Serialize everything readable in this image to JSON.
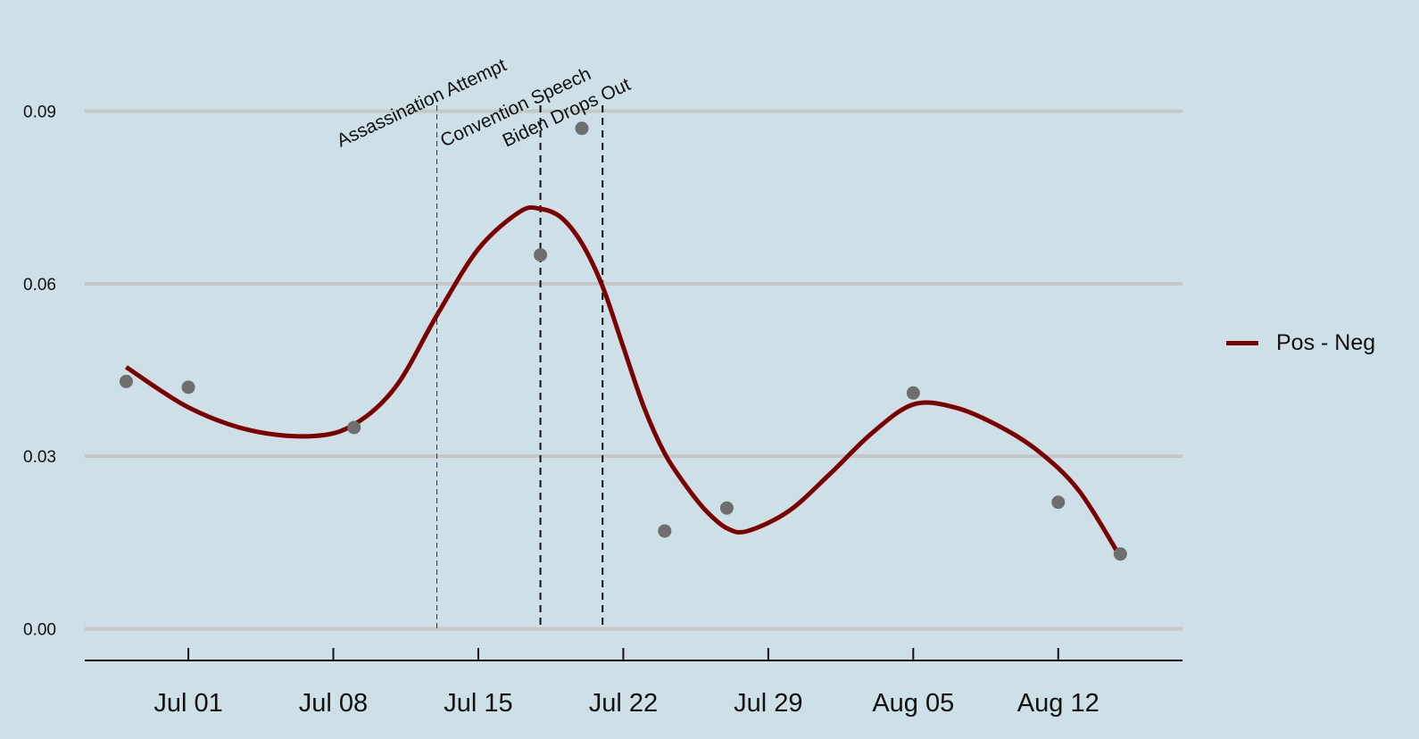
{
  "chart_data": {
    "type": "line",
    "title": "",
    "xlabel": "",
    "ylabel": "",
    "x_ticks": [
      "Jul 01",
      "Jul 08",
      "Jul 15",
      "Jul 22",
      "Jul 29",
      "Aug 05",
      "Aug 12"
    ],
    "x_tick_dates": [
      "2024-07-01",
      "2024-07-08",
      "2024-07-15",
      "2024-07-22",
      "2024-07-29",
      "2024-08-05",
      "2024-08-12"
    ],
    "xlim": [
      "2024-06-26",
      "2024-08-18"
    ],
    "y_ticks": [
      "0.00",
      "0.03",
      "0.06",
      "0.09"
    ],
    "y_tick_values": [
      0.0,
      0.03,
      0.06,
      0.09
    ],
    "ylim": [
      -0.0055,
      0.1
    ],
    "grid": "horizontal",
    "legend_position": "right",
    "points": [
      {
        "x": "2024-06-28",
        "y": 0.043
      },
      {
        "x": "2024-07-01",
        "y": 0.042
      },
      {
        "x": "2024-07-09",
        "y": 0.035
      },
      {
        "x": "2024-07-18",
        "y": 0.065
      },
      {
        "x": "2024-07-20",
        "y": 0.087
      },
      {
        "x": "2024-07-24",
        "y": 0.017
      },
      {
        "x": "2024-07-27",
        "y": 0.021
      },
      {
        "x": "2024-08-05",
        "y": 0.041
      },
      {
        "x": "2024-08-12",
        "y": 0.022
      },
      {
        "x": "2024-08-15",
        "y": 0.013
      }
    ],
    "series": [
      {
        "name": "Pos - Neg",
        "color": "#7b0000",
        "x": [
          "2024-06-28",
          "2024-07-01",
          "2024-07-04",
          "2024-07-07",
          "2024-07-09",
          "2024-07-11",
          "2024-07-13",
          "2024-07-15",
          "2024-07-17",
          "2024-07-18",
          "2024-07-19",
          "2024-07-20",
          "2024-07-21",
          "2024-07-22",
          "2024-07-23",
          "2024-07-24",
          "2024-07-25",
          "2024-07-26",
          "2024-07-27",
          "2024-07-28",
          "2024-07-30",
          "2024-08-01",
          "2024-08-03",
          "2024-08-05",
          "2024-08-07",
          "2024-08-09",
          "2024-08-11",
          "2024-08-13",
          "2024-08-15"
        ],
        "y": [
          0.0455,
          0.0385,
          0.0345,
          0.0335,
          0.0355,
          0.042,
          0.0545,
          0.066,
          0.0725,
          0.073,
          0.0715,
          0.067,
          0.0595,
          0.049,
          0.0385,
          0.0305,
          0.025,
          0.0205,
          0.0175,
          0.017,
          0.0205,
          0.027,
          0.034,
          0.039,
          0.0385,
          0.0355,
          0.031,
          0.024,
          0.0125
        ]
      }
    ],
    "point_color": "#6e6e6e",
    "events": [
      {
        "label": "Assassination Attempt",
        "x": "2024-07-13"
      },
      {
        "label": "Convention Speech",
        "x": "2024-07-18"
      },
      {
        "label": "Biden Drops Out",
        "x": "2024-07-21"
      }
    ],
    "colors": {
      "background": "#cde0e7",
      "grid": "#c6c6c6",
      "axis": "#111111"
    }
  }
}
